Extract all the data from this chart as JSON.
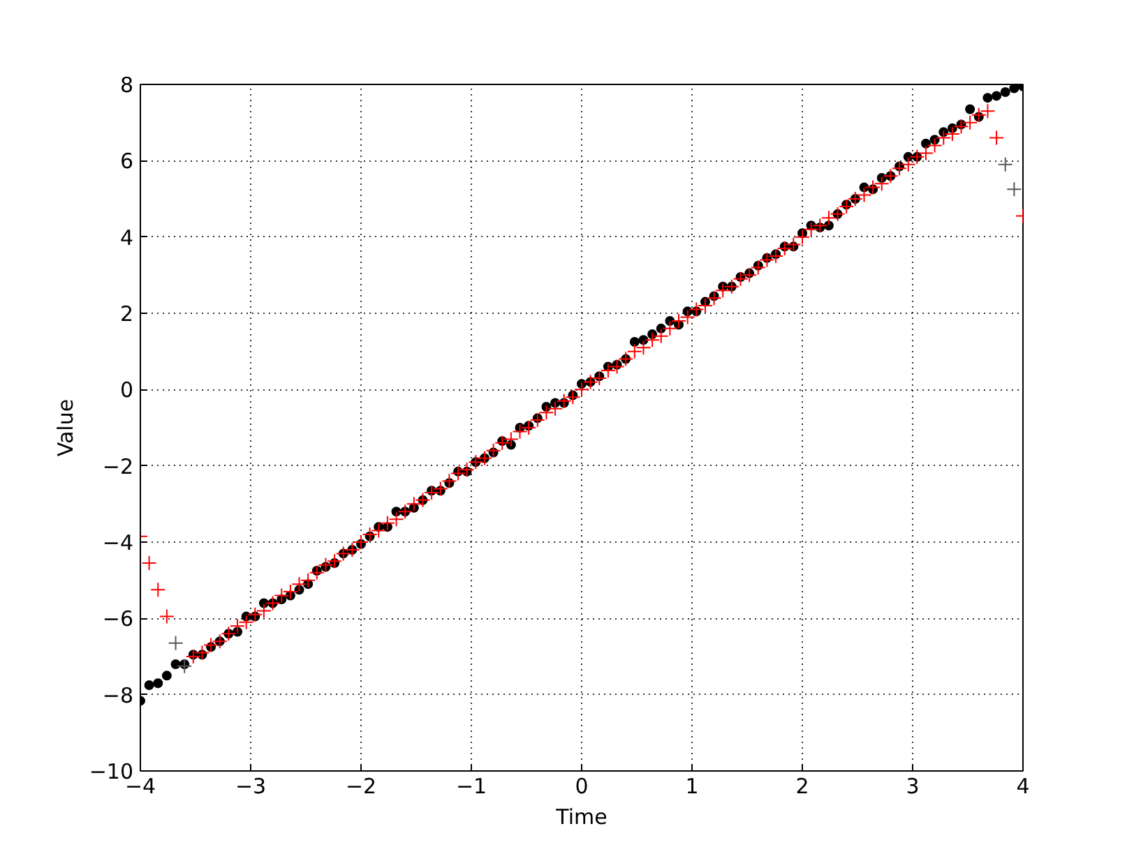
{
  "chart_data": {
    "type": "scatter",
    "xlabel": "Time",
    "ylabel": "Value",
    "x": [
      -4,
      -3.92,
      -3.84,
      -3.76,
      -3.68,
      -3.6,
      -3.52,
      -3.44,
      -3.36,
      -3.28,
      -3.2,
      -3.12,
      -3.04,
      -2.96,
      -2.88,
      -2.8,
      -2.72,
      -2.64,
      -2.56,
      -2.48,
      -2.4,
      -2.32,
      -2.24,
      -2.16,
      -2.08,
      -2,
      -1.92,
      -1.84,
      -1.76,
      -1.68,
      -1.6,
      -1.52,
      -1.44,
      -1.36,
      -1.28,
      -1.2,
      -1.12,
      -1.04,
      -0.96,
      -0.88,
      -0.8,
      -0.72,
      -0.64,
      -0.56,
      -0.48,
      -0.4,
      -0.32,
      -0.24,
      -0.16,
      -0.08,
      0,
      0.08,
      0.16,
      0.24,
      0.32,
      0.4,
      0.48,
      0.56,
      0.64,
      0.72,
      0.8,
      0.88,
      0.96,
      1.04,
      1.12,
      1.2,
      1.28,
      1.36,
      1.44,
      1.52,
      1.6,
      1.68,
      1.76,
      1.84,
      1.92,
      2,
      2.08,
      2.16,
      2.24,
      2.32,
      2.4,
      2.48,
      2.56,
      2.64,
      2.72,
      2.8,
      2.88,
      2.96,
      3.04,
      3.12,
      3.2,
      3.28,
      3.36,
      3.44,
      3.52,
      3.6,
      3.68,
      3.76,
      3.84,
      3.92,
      4
    ],
    "series": [
      {
        "color": "#ff0000",
        "marker": "cross",
        "values": [
          -3.85,
          -4.55,
          -5.25,
          -5.95,
          null,
          null,
          -7.0,
          -6.9,
          -6.7,
          -6.6,
          -6.4,
          -6.2,
          -6.1,
          -5.9,
          -5.8,
          -5.6,
          -5.4,
          -5.3,
          -5.1,
          -5.0,
          -4.8,
          -4.6,
          -4.5,
          -4.3,
          -4.2,
          -4.0,
          -3.8,
          -3.7,
          -3.5,
          -3.4,
          -3.2,
          -3.0,
          -2.9,
          -2.7,
          -2.6,
          -2.4,
          -2.2,
          -2.1,
          -1.9,
          -1.8,
          -1.6,
          -1.4,
          -1.3,
          -1.1,
          -1.0,
          -0.8,
          -0.6,
          -0.5,
          -0.3,
          -0.2,
          0.0,
          0.2,
          0.3,
          0.5,
          0.6,
          0.8,
          1.0,
          1.1,
          1.3,
          1.4,
          1.6,
          1.8,
          1.9,
          2.1,
          2.2,
          2.4,
          2.6,
          2.7,
          2.9,
          3.0,
          3.2,
          3.4,
          3.5,
          3.7,
          3.8,
          4.0,
          4.2,
          4.3,
          4.5,
          4.6,
          4.8,
          5.0,
          5.1,
          5.3,
          5.4,
          5.6,
          5.8,
          5.9,
          6.1,
          6.2,
          6.4,
          6.6,
          6.7,
          6.9,
          7.0,
          7.2,
          7.3,
          6.6,
          null,
          null,
          4.55
        ]
      },
      {
        "color": "#555555",
        "marker": "cross",
        "x": [
          -3.68,
          -3.6,
          3.84,
          3.92
        ],
        "values": [
          -6.65,
          -7.25,
          5.9,
          5.25
        ]
      },
      {
        "color": "#000000",
        "marker": "circle",
        "values": [
          -8.16,
          -7.75,
          -7.7,
          -7.5,
          -7.2,
          -7.2,
          -6.95,
          -6.95,
          -6.75,
          -6.6,
          -6.4,
          -6.35,
          -5.95,
          -5.95,
          -5.6,
          -5.6,
          -5.5,
          -5.4,
          -5.25,
          -5.1,
          -4.75,
          -4.65,
          -4.55,
          -4.3,
          -4.2,
          -4.05,
          -3.85,
          -3.6,
          -3.6,
          -3.2,
          -3.2,
          -3.1,
          -2.9,
          -2.65,
          -2.65,
          -2.45,
          -2.15,
          -2.15,
          -1.9,
          -1.8,
          -1.65,
          -1.35,
          -1.45,
          -1.0,
          -0.95,
          -0.75,
          -0.45,
          -0.35,
          -0.35,
          -0.15,
          0.15,
          0.2,
          0.35,
          0.6,
          0.65,
          0.8,
          1.25,
          1.3,
          1.45,
          1.6,
          1.8,
          1.7,
          2.05,
          2.05,
          2.3,
          2.45,
          2.7,
          2.7,
          2.95,
          3.05,
          3.25,
          3.45,
          3.55,
          3.75,
          3.75,
          4.1,
          4.3,
          4.25,
          4.3,
          4.6,
          4.85,
          5.0,
          5.3,
          5.25,
          5.55,
          5.6,
          5.85,
          6.1,
          6.1,
          6.45,
          6.55,
          6.75,
          6.85,
          6.95,
          7.35,
          7.15,
          7.65,
          7.7,
          7.8,
          7.9,
          7.95
        ]
      }
    ],
    "xlim": [
      -4,
      4
    ],
    "ylim": [
      -10,
      8
    ],
    "xticks": [
      -4,
      -3,
      -2,
      -1,
      0,
      1,
      2,
      3,
      4
    ],
    "yticks": [
      -10,
      -8,
      -6,
      -4,
      -2,
      0,
      2,
      4,
      6,
      8
    ],
    "grid": true
  }
}
